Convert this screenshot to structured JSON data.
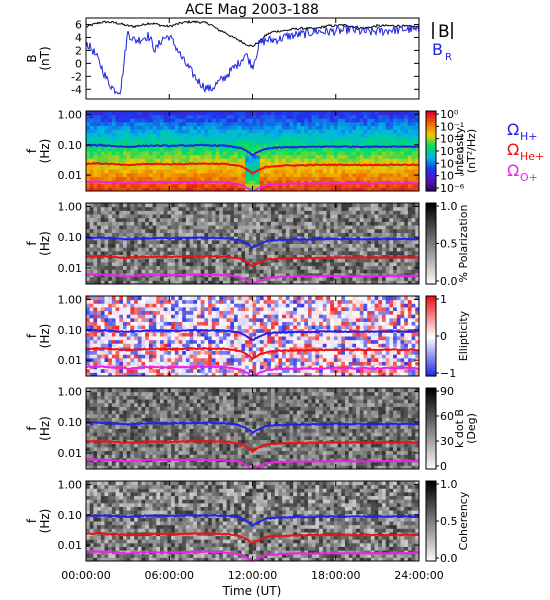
{
  "figure": {
    "title": "ACE Mag 2003-188"
  },
  "colors": {
    "total_field": "#000000",
    "radial_field": "#1a22e0",
    "omega_h": "#2222ee",
    "omega_he": "#ee1111",
    "omega_o": "#ee22ee"
  },
  "chart_data": [
    {
      "type": "line",
      "panel": "magnetic-field",
      "ylabel_main": "B",
      "ylabel_unit": "(nT)",
      "y_ticks": [
        "6",
        "4",
        "2",
        "0",
        "-2",
        "-4"
      ],
      "y_tick_values": [
        6,
        4,
        2,
        0,
        -2,
        -4
      ],
      "ylim": [
        -5.5,
        7
      ],
      "xlim": [
        0,
        24
      ],
      "x_unit": "hours UT",
      "series": [
        {
          "name": "|B|",
          "name_main": "B",
          "name_sub": "",
          "color": "#000000",
          "x": [
            0,
            0.5,
            1,
            1.5,
            2,
            2.5,
            3,
            3.5,
            4,
            4.5,
            5,
            5.5,
            6,
            6.5,
            7,
            7.5,
            8,
            8.5,
            9,
            9.5,
            10,
            10.5,
            11,
            11.5,
            12,
            12.5,
            13,
            13.5,
            14,
            14.5,
            15,
            15.5,
            16,
            16.5,
            17,
            17.5,
            18,
            18.5,
            19,
            19.5,
            20,
            20.5,
            21,
            21.5,
            22,
            22.5,
            23,
            23.5,
            24
          ],
          "values": [
            5.6,
            6.0,
            6.3,
            6.4,
            6.3,
            6.1,
            5.8,
            5.7,
            5.9,
            6.2,
            6.1,
            5.8,
            5.7,
            6.0,
            6.3,
            6.4,
            6.4,
            6.3,
            6.0,
            5.2,
            4.8,
            4.1,
            3.6,
            3.0,
            2.6,
            3.4,
            4.4,
            4.9,
            5.0,
            5.1,
            5.3,
            5.4,
            5.4,
            5.3,
            5.6,
            5.8,
            5.8,
            5.9,
            5.8,
            5.6,
            5.4,
            5.6,
            5.8,
            5.8,
            5.8,
            5.8,
            5.7,
            5.7,
            5.6
          ]
        },
        {
          "name": "BR",
          "name_main": "B",
          "name_sub": "R",
          "color": "#1a22e0",
          "x": [
            0,
            0.5,
            1,
            1.5,
            2,
            2.5,
            3,
            3.5,
            4,
            4.5,
            5,
            5.5,
            6,
            6.5,
            7,
            7.5,
            8,
            8.5,
            9,
            9.5,
            10,
            10.5,
            11,
            11.5,
            12,
            12.5,
            13,
            13.5,
            14,
            14.5,
            15,
            15.5,
            16,
            16.5,
            17,
            17.5,
            18,
            18.5,
            19,
            19.5,
            20,
            20.5,
            21,
            21.5,
            22,
            22.5,
            23,
            23.5,
            24
          ],
          "values": [
            3.2,
            2.0,
            0.0,
            -2.5,
            -4.0,
            -4.2,
            4.8,
            3.5,
            3.8,
            4.3,
            2.0,
            3.8,
            4.2,
            2.5,
            0.5,
            -1.0,
            -2.5,
            -3.6,
            -4.0,
            -3.0,
            -2.2,
            -1.0,
            0.0,
            1.5,
            -0.5,
            3.0,
            3.6,
            3.6,
            3.8,
            4.2,
            4.3,
            4.5,
            4.6,
            5.0,
            4.9,
            4.9,
            5.0,
            5.0,
            5.3,
            5.0,
            4.9,
            4.8,
            5.0,
            5.0,
            5.2,
            5.1,
            5.3,
            5.2,
            5.0
          ]
        }
      ]
    },
    {
      "type": "heatmap",
      "panel": "power-spectrum",
      "ylabel_main": "f",
      "ylabel_unit": "(Hz)",
      "y_ticks": [
        "1.00",
        "0.10",
        "0.01"
      ],
      "y_tick_values": [
        1.0,
        0.1,
        0.01
      ],
      "ylim": [
        0.003,
        1.3
      ],
      "y_scale": "log",
      "colorbar": {
        "label_main": "Intensity",
        "label_unit": "(nT²/Hz)",
        "ticks": [
          "10⁰",
          "10⁻¹",
          "10⁻²",
          "10⁻³",
          "10⁻⁴",
          "10⁻⁵",
          "10⁻⁶"
        ],
        "colors": [
          "#2a0a44",
          "#5218b6",
          "#2233ee",
          "#00b6e6",
          "#00dd66",
          "#eecc00",
          "#ee6600",
          "#dd0022"
        ]
      }
    },
    {
      "type": "heatmap",
      "panel": "polarization",
      "ylabel_main": "f",
      "ylabel_unit": "(Hz)",
      "y_ticks": [
        "1.00",
        "0.10",
        "0.01"
      ],
      "y_tick_values": [
        1.0,
        0.1,
        0.01
      ],
      "ylim": [
        0.003,
        1.3
      ],
      "y_scale": "log",
      "colorbar": {
        "label_main": "% Polarization",
        "label_unit": "",
        "ticks": [
          "1.0",
          "0.5",
          "0.0"
        ],
        "colors": [
          "#ffffff",
          "#000000"
        ]
      }
    },
    {
      "type": "heatmap",
      "panel": "ellipticity",
      "ylabel_main": "f",
      "ylabel_unit": "(Hz)",
      "y_ticks": [
        "1.00",
        "0.10",
        "0.01"
      ],
      "y_tick_values": [
        1.0,
        0.1,
        0.01
      ],
      "ylim": [
        0.003,
        1.3
      ],
      "y_scale": "log",
      "colorbar": {
        "label_main": "Ellipticity",
        "label_unit": "",
        "ticks": [
          "1",
          "0",
          "−1"
        ],
        "colors": [
          "#1a22e0",
          "#ffffff",
          "#ee1111"
        ]
      }
    },
    {
      "type": "heatmap",
      "panel": "wave-normal-angle",
      "ylabel_main": "f",
      "ylabel_unit": "(Hz)",
      "y_ticks": [
        "1.00",
        "0.10",
        "0.01"
      ],
      "y_tick_values": [
        1.0,
        0.1,
        0.01
      ],
      "ylim": [
        0.003,
        1.3
      ],
      "y_scale": "log",
      "colorbar": {
        "label_main": "k dot B",
        "label_unit": "(Deg)",
        "ticks": [
          "90",
          "60",
          "30",
          "0"
        ],
        "colors": [
          "#ffffff",
          "#000000"
        ]
      }
    },
    {
      "type": "heatmap",
      "panel": "coherency",
      "ylabel_main": "f",
      "ylabel_unit": "(Hz)",
      "y_ticks": [
        "1.00",
        "0.10",
        "0.01"
      ],
      "y_tick_values": [
        1.0,
        0.1,
        0.01
      ],
      "ylim": [
        0.003,
        1.3
      ],
      "y_scale": "log",
      "colorbar": {
        "label_main": "Coherency",
        "label_unit": "",
        "ticks": [
          "1.0",
          "0.5",
          "0.0"
        ],
        "colors": [
          "#ffffff",
          "#000000"
        ]
      }
    }
  ],
  "gyro_legend": [
    {
      "name": "ΩH+",
      "main": "Ω",
      "sub": "H+",
      "color": "#2222ee"
    },
    {
      "name": "ΩHe+",
      "main": "Ω",
      "sub": "He+",
      "color": "#ee1111"
    },
    {
      "name": "ΩO+",
      "main": "Ω",
      "sub": "O+",
      "color": "#ee22ee"
    }
  ],
  "gyro_curves": {
    "x": [
      0,
      1,
      2,
      3,
      4,
      5,
      6,
      7,
      8,
      9,
      10,
      11,
      11.5,
      12,
      12.5,
      13,
      14,
      15,
      16,
      17,
      18,
      19,
      20,
      21,
      22,
      23,
      24
    ],
    "h": [
      0.095,
      0.097,
      0.092,
      0.085,
      0.092,
      0.094,
      0.092,
      0.094,
      0.096,
      0.096,
      0.093,
      0.082,
      0.065,
      0.045,
      0.06,
      0.075,
      0.082,
      0.084,
      0.085,
      0.087,
      0.088,
      0.087,
      0.087,
      0.087,
      0.088,
      0.088,
      0.087
    ],
    "he": [
      0.024,
      0.0243,
      0.023,
      0.0213,
      0.023,
      0.0235,
      0.023,
      0.0235,
      0.024,
      0.024,
      0.0233,
      0.0205,
      0.0163,
      0.0113,
      0.015,
      0.0188,
      0.0205,
      0.021,
      0.0213,
      0.0218,
      0.022,
      0.0218,
      0.0218,
      0.0218,
      0.022,
      0.022,
      0.0218
    ],
    "o": [
      0.006,
      0.0061,
      0.0058,
      0.0053,
      0.0058,
      0.0059,
      0.0058,
      0.0059,
      0.006,
      0.006,
      0.0058,
      0.0051,
      0.0041,
      0.0028,
      0.0038,
      0.0047,
      0.0051,
      0.0053,
      0.0053,
      0.0054,
      0.0055,
      0.0054,
      0.0054,
      0.0054,
      0.0055,
      0.0055,
      0.0054
    ]
  },
  "x_axis": {
    "label": "Time (UT)",
    "ticks": [
      "00:00:00",
      "06:00:00",
      "12:00:00",
      "18:00:00",
      "24:00:00"
    ],
    "tick_values": [
      0,
      6,
      12,
      18,
      24
    ]
  }
}
